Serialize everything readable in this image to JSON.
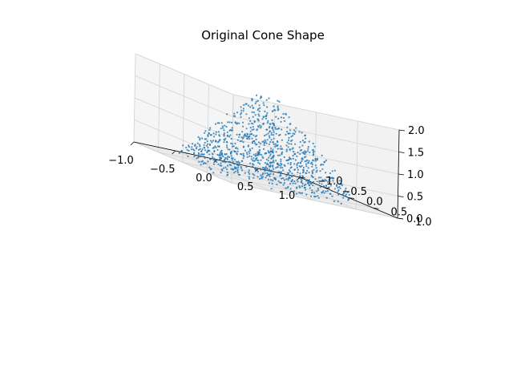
{
  "chart_data": {
    "type": "scatter",
    "projection": "3d",
    "title": "Original Cone Shape",
    "xlabel": "",
    "ylabel": "",
    "zlabel": "",
    "xlim": [
      -1.0,
      1.0
    ],
    "ylim": [
      -1.0,
      1.0
    ],
    "zlim": [
      0.0,
      2.0
    ],
    "x_ticks": [
      "−1.0",
      "−0.5",
      "0.0",
      "0.5",
      "1.0"
    ],
    "y_ticks": [
      "−1.0",
      "−0.5",
      "0.0",
      "0.5",
      "1.0"
    ],
    "z_ticks": [
      "0.0",
      "0.5",
      "1.0",
      "1.5",
      "2.0"
    ],
    "grid": true,
    "marker_color": "#1f77b4",
    "pane_color": "#f2f2f2",
    "grid_color": "#d3d3d3",
    "point_count": 1000,
    "points_sample": [
      [
        0.62,
        -0.1,
        0.35
      ],
      [
        -0.48,
        0.55,
        0.2
      ],
      [
        0.12,
        0.88,
        0.05
      ],
      [
        -0.71,
        -0.3,
        0.4
      ],
      [
        0.05,
        -0.05,
        1.85
      ],
      [
        0.22,
        0.1,
        1.4
      ],
      [
        -0.35,
        -0.6,
        0.6
      ],
      [
        0.8,
        0.35,
        0.15
      ],
      [
        -0.15,
        0.25,
        1.2
      ],
      [
        0.4,
        -0.55,
        0.55
      ],
      [
        -0.9,
        0.2,
        0.08
      ],
      [
        0.3,
        0.45,
        0.95
      ],
      [
        -0.05,
        -0.4,
        1.1
      ],
      [
        0.55,
        0.65,
        0.12
      ],
      [
        -0.6,
        -0.7,
        0.1
      ],
      [
        0.1,
        0.05,
        1.7
      ]
    ]
  }
}
